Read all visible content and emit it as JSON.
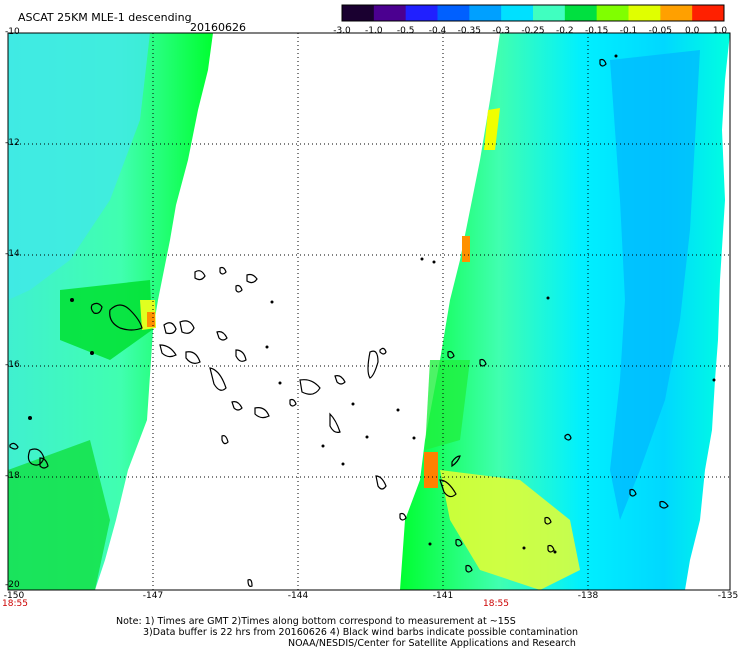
{
  "header": {
    "title": "ASCAT 25KM MLE-1 descending",
    "date": "20160626"
  },
  "colorbar": {
    "tick_labels": [
      "-3.0",
      "-1.0",
      "-0.5",
      "-0.4",
      "-0.35",
      "-0.3",
      "-0.25",
      "-0.2",
      "-0.15",
      "-0.1",
      "-0.05",
      "0.0",
      "1.0"
    ],
    "colors": [
      "#1a0030",
      "#4b0090",
      "#2020ff",
      "#0060ff",
      "#00a0ff",
      "#00e0ff",
      "#40ffc0",
      "#00e040",
      "#80ff00",
      "#e0ff00",
      "#ffa000",
      "#ff2000"
    ]
  },
  "map": {
    "lat_labels": [
      "-10",
      "-12",
      "-14",
      "-16",
      "-18",
      "-20"
    ],
    "lon_labels": [
      "-150",
      "-147",
      "-144",
      "-141",
      "-138",
      "-135"
    ],
    "lat_range": [
      -20,
      -10
    ],
    "lon_range": [
      -150,
      -135
    ],
    "swath_times": [
      "18:55",
      "18:55"
    ],
    "swath_colors": {
      "cyan": "#00ffff",
      "teal": "#40f0d0",
      "green": "#00ff30",
      "lime": "#60ff20",
      "yellow": "#f0ff00",
      "orange": "#ff9000",
      "blue": "#00c0ff"
    },
    "coastline_color": "#000000"
  },
  "footer": {
    "line1": "Note: 1) Times are GMT 2)Times along bottom correspond to measurement at ~15S",
    "line2": "3)Data buffer is 22 hrs from 20160626 4) Black wind barbs indicate possible contamination",
    "line3": "NOAA/NESDIS/Center for Satellite Applications and Research"
  }
}
